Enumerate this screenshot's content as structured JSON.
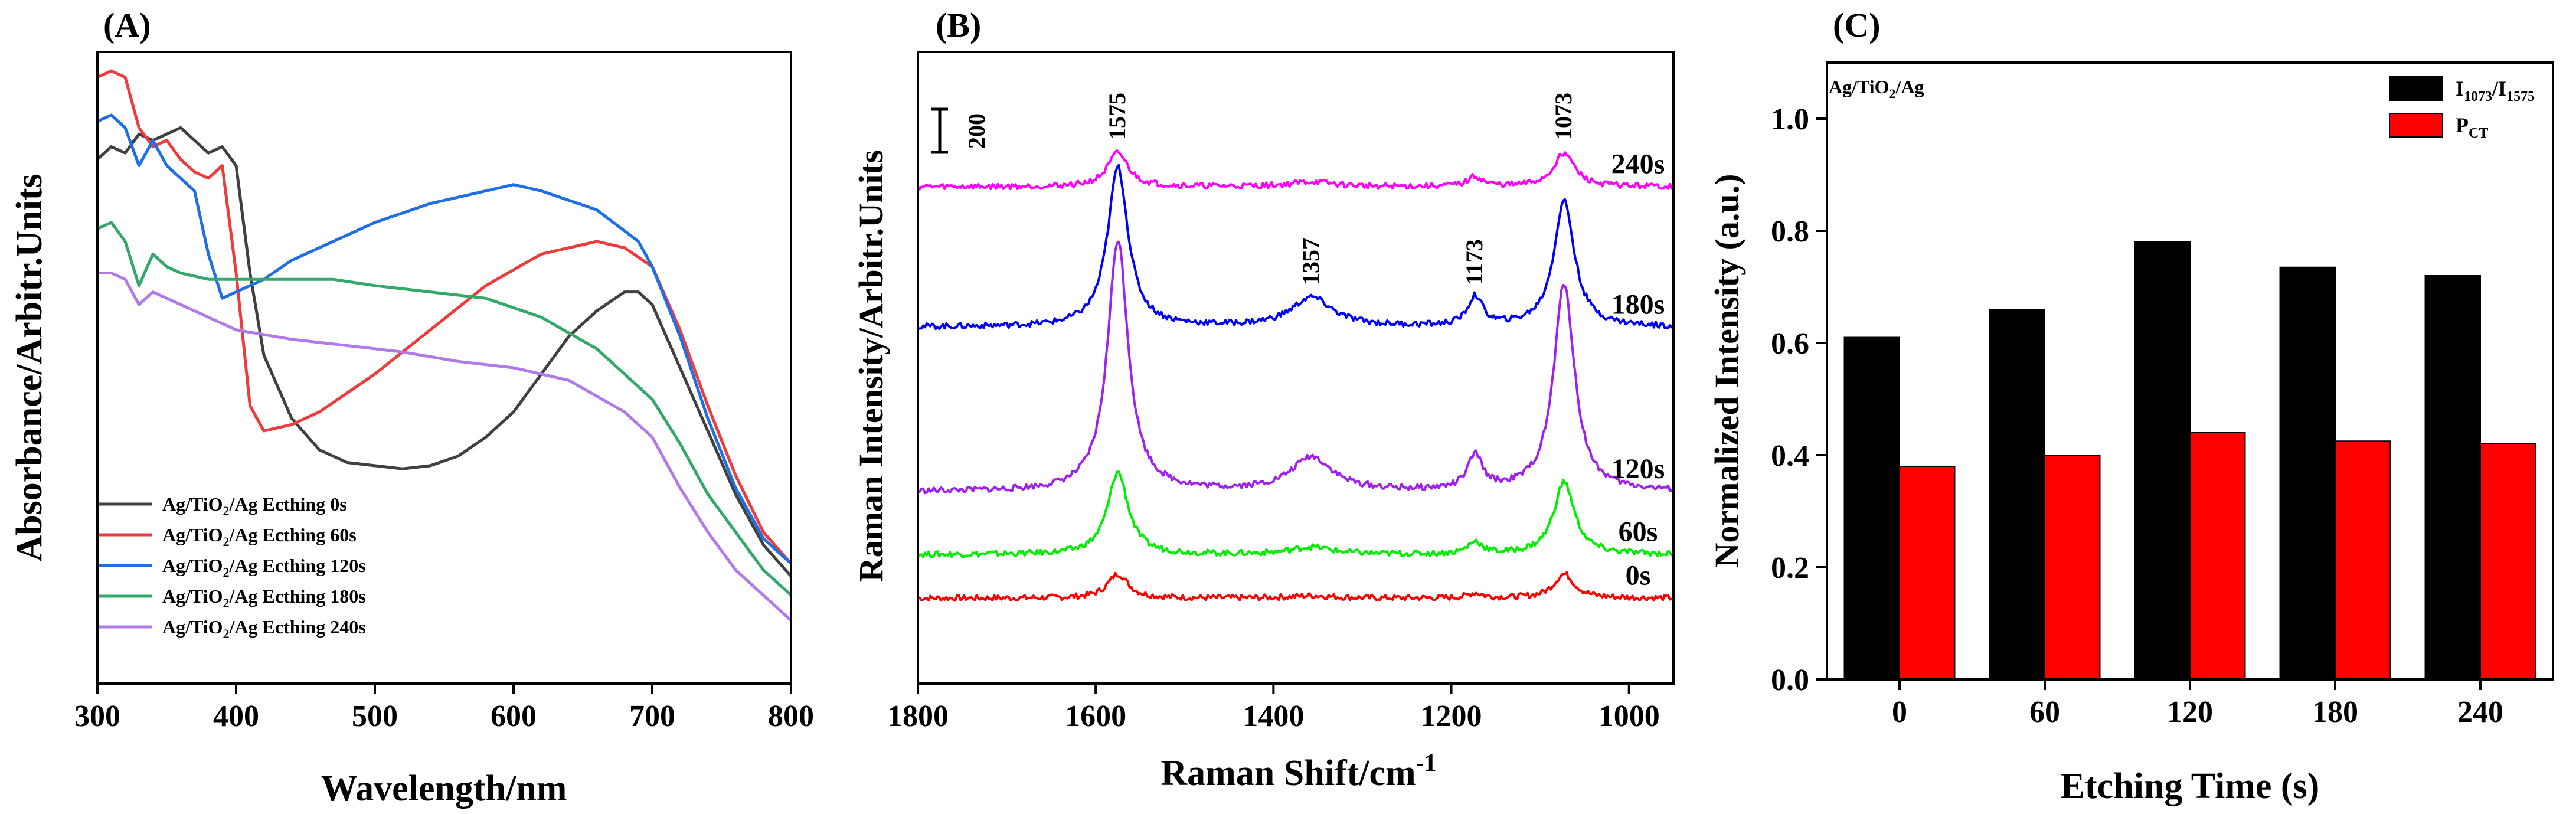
{
  "colors": {
    "black": "#000000",
    "red": "#ff0000",
    "blue": "#0000ff",
    "green": "#00ee00",
    "purple": "#a020f0",
    "magenta": "#ff00ff",
    "uv_gray": "#404040",
    "uv_red": "#ee3b3b",
    "uv_blue": "#1e6fe6",
    "uv_green": "#33a86b",
    "uv_purple": "#b07ae8"
  },
  "chart_data": [
    {
      "panel_label": "(A)",
      "type": "line",
      "title": "",
      "xlabel": "Wavelength/nm",
      "ylabel": "Absorbance/Arbitr.Units",
      "xlim": [
        300,
        800
      ],
      "ylim": [
        0,
        1
      ],
      "x_ticks": [
        "300",
        "400",
        "500",
        "600",
        "700",
        "800"
      ],
      "y_ticks_shown": false,
      "legend_position": "bottom-left",
      "series": [
        {
          "name": "Ag/TiO2/Ag Ecthing 0s",
          "label_main": "Ag/TiO",
          "label_sub": "2",
          "label_rest": "/Ag Ecthing 0s",
          "color_key": "uv_gray",
          "x": [
            300,
            310,
            320,
            330,
            340,
            350,
            360,
            370,
            380,
            390,
            400,
            410,
            420,
            440,
            460,
            480,
            500,
            520,
            540,
            560,
            580,
            600,
            620,
            640,
            660,
            680,
            690,
            700,
            720,
            740,
            760,
            780,
            800
          ],
          "y": [
            0.83,
            0.85,
            0.84,
            0.87,
            0.86,
            0.87,
            0.88,
            0.86,
            0.84,
            0.85,
            0.82,
            0.65,
            0.52,
            0.42,
            0.37,
            0.35,
            0.345,
            0.34,
            0.345,
            0.36,
            0.39,
            0.43,
            0.49,
            0.55,
            0.59,
            0.62,
            0.62,
            0.6,
            0.5,
            0.4,
            0.3,
            0.22,
            0.17
          ]
        },
        {
          "name": "Ag/TiO2/Ag Ecthing 60s",
          "label_main": "Ag/TiO",
          "label_sub": "2",
          "label_rest": "/Ag Ecthing 60s",
          "color_key": "uv_red",
          "x": [
            300,
            310,
            320,
            330,
            340,
            350,
            360,
            370,
            380,
            390,
            400,
            410,
            420,
            440,
            460,
            480,
            500,
            540,
            580,
            620,
            660,
            680,
            700,
            720,
            740,
            760,
            780,
            800
          ],
          "y": [
            0.96,
            0.97,
            0.96,
            0.88,
            0.85,
            0.86,
            0.83,
            0.81,
            0.8,
            0.82,
            0.65,
            0.44,
            0.4,
            0.41,
            0.43,
            0.46,
            0.49,
            0.56,
            0.63,
            0.68,
            0.7,
            0.69,
            0.66,
            0.56,
            0.44,
            0.33,
            0.24,
            0.19
          ]
        },
        {
          "name": "Ag/TiO2/Ag Ecthing 120s",
          "label_main": "Ag/TiO",
          "label_sub": "2",
          "label_rest": "/Ag Ecthing 120s",
          "color_key": "uv_blue",
          "x": [
            300,
            310,
            320,
            330,
            340,
            350,
            360,
            370,
            380,
            390,
            400,
            410,
            420,
            440,
            460,
            480,
            500,
            540,
            580,
            600,
            620,
            660,
            690,
            700,
            720,
            740,
            760,
            780,
            800
          ],
          "y": [
            0.89,
            0.9,
            0.88,
            0.82,
            0.86,
            0.82,
            0.8,
            0.78,
            0.68,
            0.61,
            0.62,
            0.63,
            0.64,
            0.67,
            0.69,
            0.71,
            0.73,
            0.76,
            0.78,
            0.79,
            0.78,
            0.75,
            0.7,
            0.66,
            0.55,
            0.42,
            0.31,
            0.23,
            0.19
          ]
        },
        {
          "name": "Ag/TiO2/Ag Ecthing 180s",
          "label_main": "Ag/TiO",
          "label_sub": "2",
          "label_rest": "/Ag Ecthing 180s",
          "color_key": "uv_green",
          "x": [
            300,
            310,
            320,
            330,
            340,
            350,
            360,
            380,
            400,
            440,
            470,
            500,
            540,
            580,
            620,
            660,
            700,
            720,
            740,
            760,
            780,
            800
          ],
          "y": [
            0.72,
            0.73,
            0.7,
            0.63,
            0.68,
            0.66,
            0.65,
            0.64,
            0.64,
            0.64,
            0.64,
            0.63,
            0.62,
            0.61,
            0.58,
            0.53,
            0.45,
            0.38,
            0.3,
            0.24,
            0.18,
            0.14
          ]
        },
        {
          "name": "Ag/TiO2/Ag Ecthing 240s",
          "label_main": "Ag/TiO",
          "label_sub": "2",
          "label_rest": "/Ag Ecthing 240s",
          "color_key": "uv_purple",
          "x": [
            300,
            310,
            320,
            330,
            340,
            360,
            380,
            400,
            440,
            480,
            520,
            560,
            600,
            640,
            680,
            700,
            720,
            740,
            760,
            780,
            800
          ],
          "y": [
            0.65,
            0.65,
            0.64,
            0.6,
            0.62,
            0.6,
            0.58,
            0.56,
            0.545,
            0.535,
            0.525,
            0.51,
            0.5,
            0.48,
            0.43,
            0.39,
            0.31,
            0.24,
            0.18,
            0.14,
            0.1
          ]
        }
      ]
    },
    {
      "panel_label": "(B)",
      "type": "line",
      "title": "",
      "xlabel": "Raman Shift/cm",
      "xlabel_sup": "-1",
      "ylabel": "Raman Intensity/Arbitr.Units",
      "xlim": [
        1800,
        950
      ],
      "x_reversed": true,
      "x_ticks": [
        "1800",
        "1600",
        "1400",
        "1200",
        "1000"
      ],
      "scale_bar_label": "200",
      "peaks": [
        {
          "position": 1575,
          "label": "1575"
        },
        {
          "position": 1357,
          "label": "1357"
        },
        {
          "position": 1173,
          "label": "1173"
        },
        {
          "position": 1073,
          "label": "1073"
        }
      ],
      "series": [
        {
          "name": "0s",
          "color_key": "red",
          "baseline": 0.03,
          "amplitudes": [
            0.05,
            0.005,
            0.01,
            0.05
          ]
        },
        {
          "name": "60s",
          "color_key": "green",
          "baseline": 0.12,
          "amplitudes": [
            0.17,
            0.015,
            0.025,
            0.15
          ]
        },
        {
          "name": "120s",
          "color_key": "purple",
          "baseline": 0.25,
          "amplitudes": [
            0.52,
            0.07,
            0.07,
            0.43
          ]
        },
        {
          "name": "180s",
          "color_key": "blue",
          "baseline": 0.59,
          "amplitudes": [
            0.33,
            0.06,
            0.06,
            0.26
          ]
        },
        {
          "name": "240s",
          "color_key": "magenta",
          "baseline": 0.88,
          "amplitudes": [
            0.07,
            0.01,
            0.02,
            0.07
          ]
        }
      ]
    },
    {
      "panel_label": "(C)",
      "type": "bar",
      "title": "",
      "annotation": "Ag/TiO2/Ag",
      "annotation_main": "Ag/TiO",
      "annotation_sub": "2",
      "annotation_rest": "/Ag",
      "xlabel": "Etching Time (s)",
      "ylabel": "Normalized Intensity (a.u.)",
      "ylim": [
        0.0,
        1.1
      ],
      "y_ticks": [
        "0.0",
        "0.2",
        "0.4",
        "0.6",
        "0.8",
        "1.0"
      ],
      "categories": [
        "0",
        "60",
        "120",
        "180",
        "240"
      ],
      "legend_position": "top-right",
      "series": [
        {
          "name": "I1073/I1575",
          "label_parts": [
            [
              "I",
              ""
            ],
            [
              "1073",
              "sub"
            ],
            [
              "/I",
              ""
            ],
            [
              "1575",
              "sub"
            ]
          ],
          "color_key": "black",
          "values": [
            0.61,
            0.66,
            0.78,
            0.735,
            0.72
          ]
        },
        {
          "name": "PCT",
          "label_parts": [
            [
              "P",
              ""
            ],
            [
              "CT",
              "sub"
            ]
          ],
          "color_key": "red",
          "values": [
            0.38,
            0.4,
            0.44,
            0.425,
            0.42
          ]
        }
      ]
    }
  ]
}
